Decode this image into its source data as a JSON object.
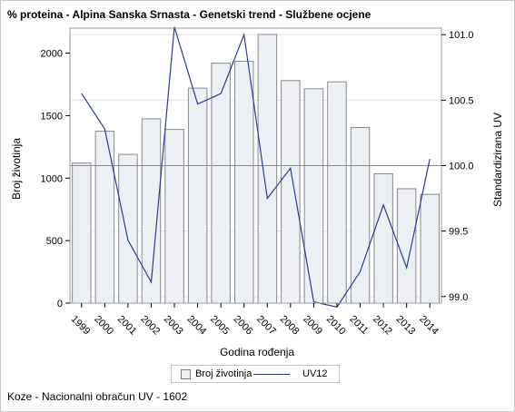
{
  "title": "% proteina - Alpina Sanska Srnasta - Genetski trend - Službene ocjene",
  "footnote": "Koze - Nacionalni obračun UV - 1602",
  "colors": {
    "bar_fill": "#eceff4",
    "bar_stroke": "#8a8a8a",
    "line": "#2b3d8b",
    "grid": "#e2e2e2",
    "refline": "#8a8a8a"
  },
  "chart_data": {
    "type": "bar+line",
    "categories": [
      "1999",
      "2000",
      "2001",
      "2002",
      "2003",
      "2004",
      "2005",
      "2006",
      "2007",
      "2008",
      "2009",
      "2010",
      "2011",
      "2012",
      "2013",
      "2014"
    ],
    "xlabel": "Godina rođenja",
    "ylabel_left": "Broj životinja",
    "ylabel_right": "Standardizirana UV",
    "ylim_left": [
      0,
      2200
    ],
    "yticks_left": [
      0,
      500,
      1000,
      1500,
      2000
    ],
    "ylim_right": [
      98.95,
      101.05
    ],
    "yticks_right": [
      99.0,
      99.5,
      100.0,
      100.5,
      101.0
    ],
    "reference_line_right": 100.0,
    "series": [
      {
        "name": "Broj životinja",
        "type": "bar",
        "axis": "left",
        "values": [
          1120,
          1375,
          1190,
          1475,
          1390,
          1720,
          1920,
          1935,
          2150,
          1780,
          1715,
          1770,
          1405,
          1035,
          915,
          870
        ]
      },
      {
        "name": "UV12",
        "type": "line",
        "axis": "right",
        "values": [
          100.55,
          100.28,
          99.43,
          99.11,
          101.06,
          100.47,
          100.55,
          101.0,
          99.75,
          99.98,
          98.96,
          98.92,
          99.19,
          99.7,
          99.22,
          100.05
        ]
      }
    ],
    "legend_position": "bottom",
    "grid": true
  }
}
